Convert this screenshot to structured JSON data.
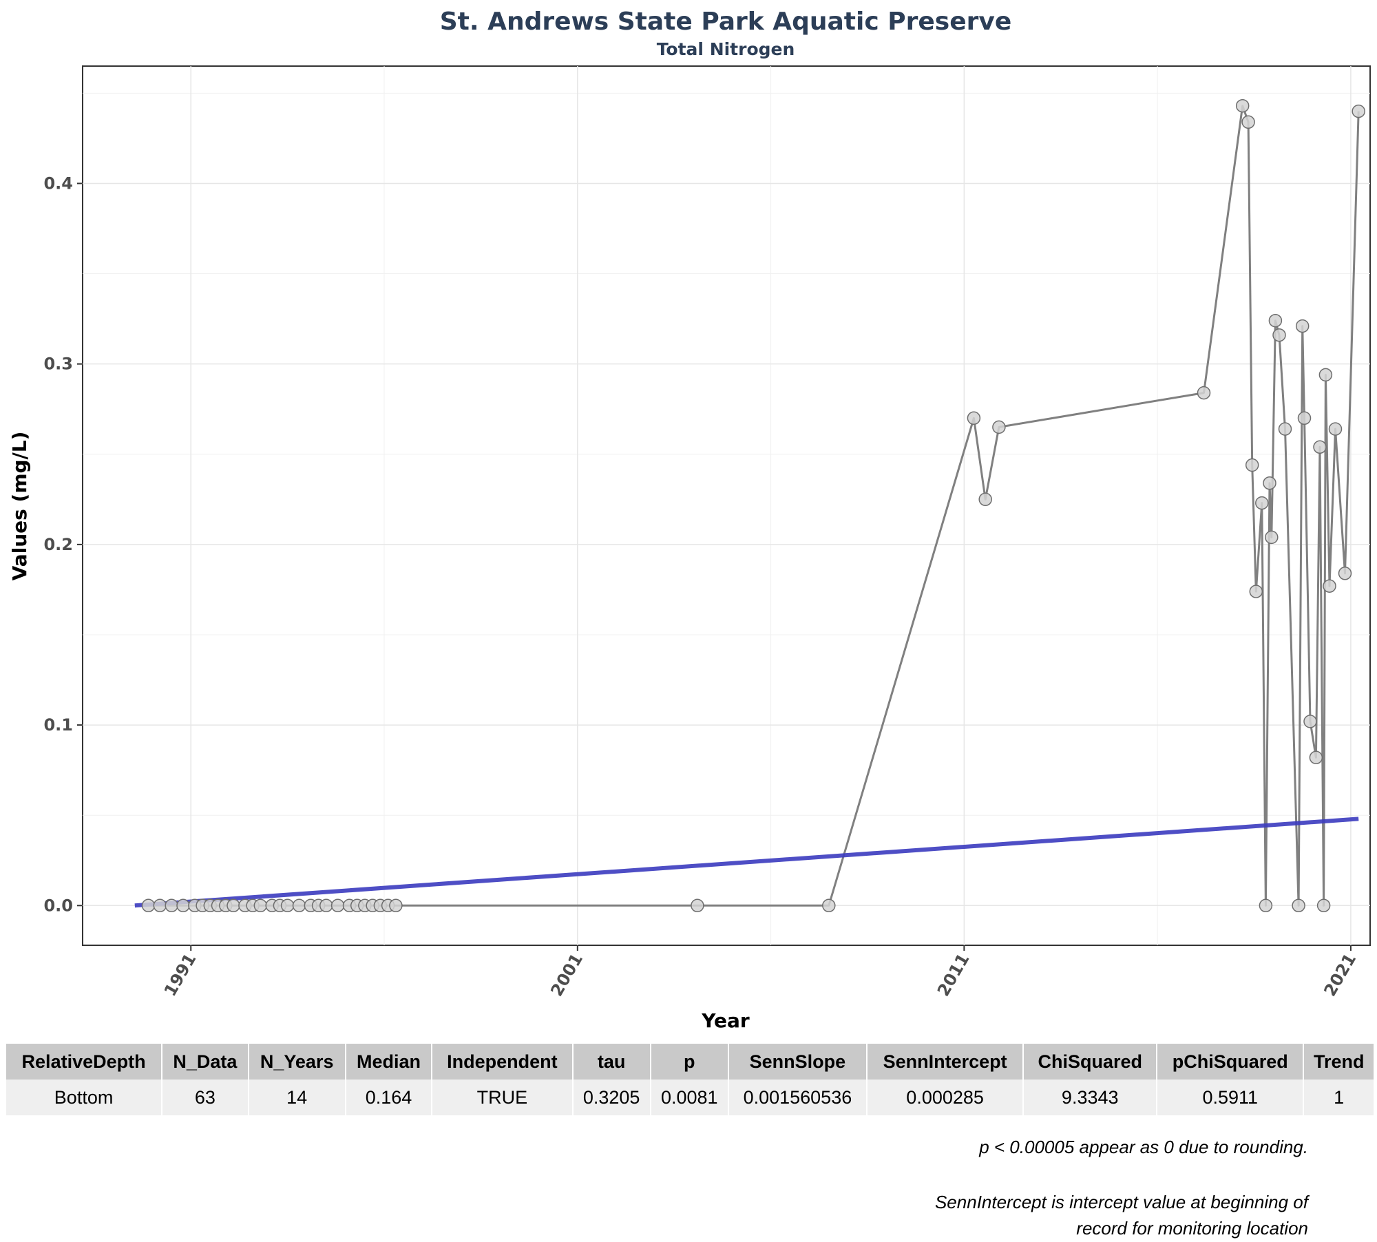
{
  "chart_data": {
    "type": "line",
    "title": "St. Andrews State Park Aquatic Preserve",
    "subtitle": "Total Nitrogen",
    "xlabel": "Year",
    "ylabel": "Values (mg/L)",
    "x_ticks": [
      1991,
      2001,
      2011,
      2021
    ],
    "y_ticks": [
      0.0,
      0.1,
      0.2,
      0.3,
      0.4
    ],
    "y_tick_labels": [
      "0.0",
      "0.1",
      "0.2",
      "0.3",
      "0.4"
    ],
    "xlim": [
      1988.2,
      2021.5
    ],
    "ylim": [
      -0.022,
      0.465
    ],
    "grid": true,
    "series": [
      {
        "style": "line+markers",
        "color": "#808080",
        "marker_fill": "#d3d3d3",
        "points": [
          [
            1989.9,
            0.0
          ],
          [
            1990.2,
            0.0
          ],
          [
            1990.5,
            0.0
          ],
          [
            1990.8,
            0.0
          ],
          [
            1991.1,
            0.0
          ],
          [
            1991.3,
            0.0
          ],
          [
            1991.5,
            0.0
          ],
          [
            1991.7,
            0.0
          ],
          [
            1991.9,
            0.0
          ],
          [
            1992.1,
            0.0
          ],
          [
            1992.4,
            0.0
          ],
          [
            1992.6,
            0.0
          ],
          [
            1992.8,
            0.0
          ],
          [
            1993.1,
            0.0
          ],
          [
            1993.3,
            0.0
          ],
          [
            1993.5,
            0.0
          ],
          [
            1993.8,
            0.0
          ],
          [
            1994.1,
            0.0
          ],
          [
            1994.3,
            0.0
          ],
          [
            1994.5,
            0.0
          ],
          [
            1994.8,
            0.0
          ],
          [
            1995.1,
            0.0
          ],
          [
            1995.3,
            0.0
          ],
          [
            1995.5,
            0.0
          ],
          [
            1995.7,
            0.0
          ],
          [
            1995.9,
            0.0
          ],
          [
            1996.1,
            0.0
          ],
          [
            1996.3,
            0.0
          ],
          [
            2004.1,
            0.0
          ],
          [
            2007.5,
            0.0
          ],
          [
            2011.25,
            0.27
          ],
          [
            2011.55,
            0.225
          ],
          [
            2011.9,
            0.265
          ],
          [
            2017.2,
            0.284
          ],
          [
            2018.2,
            0.443
          ],
          [
            2018.35,
            0.434
          ],
          [
            2018.45,
            0.244
          ],
          [
            2018.55,
            0.174
          ],
          [
            2018.7,
            0.223
          ],
          [
            2018.8,
            0.0
          ],
          [
            2018.9,
            0.234
          ],
          [
            2018.95,
            0.204
          ],
          [
            2019.05,
            0.324
          ],
          [
            2019.15,
            0.316
          ],
          [
            2019.3,
            0.264
          ],
          [
            2019.65,
            0.0
          ],
          [
            2019.75,
            0.321
          ],
          [
            2019.8,
            0.27
          ],
          [
            2019.95,
            0.102
          ],
          [
            2020.1,
            0.082
          ],
          [
            2020.2,
            0.254
          ],
          [
            2020.3,
            0.0
          ],
          [
            2020.35,
            0.294
          ],
          [
            2020.45,
            0.177
          ],
          [
            2020.6,
            0.264
          ],
          [
            2020.85,
            0.184
          ],
          [
            2021.2,
            0.44
          ]
        ]
      },
      {
        "style": "trend",
        "color": "#3b3bbf",
        "points": [
          [
            1989.55,
            0.0
          ],
          [
            2021.2,
            0.048
          ]
        ]
      }
    ]
  },
  "table": {
    "headers": [
      "RelativeDepth",
      "N_Data",
      "N_Years",
      "Median",
      "Independent",
      "tau",
      "p",
      "SennSlope",
      "SennIntercept",
      "ChiSquared",
      "pChiSquared",
      "Trend"
    ],
    "row": [
      "Bottom",
      "63",
      "14",
      "0.164",
      "TRUE",
      "0.3205",
      "0.0081",
      "0.001560536",
      "0.000285",
      "9.3343",
      "0.5911",
      "1"
    ]
  },
  "notes": {
    "note1": "p < 0.00005 appear as 0 due to rounding.",
    "note2_line1": "SennIntercept is intercept value at beginning of",
    "note2_line2": "record for monitoring location"
  }
}
